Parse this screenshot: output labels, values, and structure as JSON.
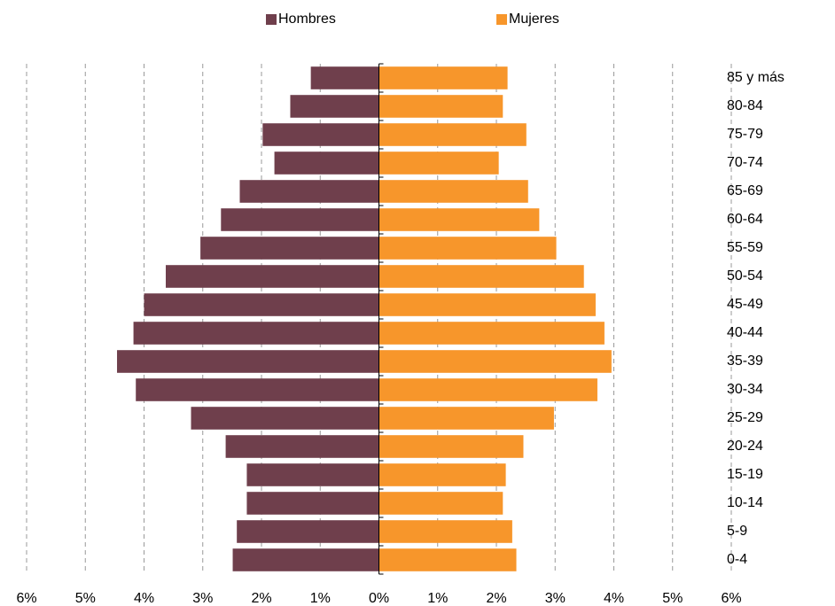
{
  "chart_data": {
    "type": "pyramid",
    "categories": [
      "0-4",
      "5-9",
      "10-14",
      "15-19",
      "20-24",
      "25-29",
      "30-34",
      "35-39",
      "40-44",
      "45-49",
      "50-54",
      "55-59",
      "60-64",
      "65-69",
      "70-74",
      "75-79",
      "80-84",
      "85 y más"
    ],
    "series": [
      {
        "name": "Hombres",
        "color": "#6f3f4c",
        "values": [
          -2.49,
          -2.42,
          -2.25,
          -2.25,
          -2.61,
          -3.2,
          -4.14,
          -4.46,
          -4.18,
          -4.0,
          -3.63,
          -3.04,
          -2.69,
          -2.37,
          -1.78,
          -1.98,
          -1.51,
          -1.16
        ]
      },
      {
        "name": "Mujeres",
        "color": "#f7962b",
        "values": [
          2.34,
          2.27,
          2.11,
          2.16,
          2.46,
          2.98,
          3.72,
          3.96,
          3.84,
          3.69,
          3.49,
          3.02,
          2.73,
          2.54,
          2.04,
          2.51,
          2.11,
          2.19
        ]
      }
    ],
    "xlim": [
      -6,
      6
    ],
    "xticks": [
      {
        "value": -6,
        "label": "6%"
      },
      {
        "value": -5,
        "label": "5%"
      },
      {
        "value": -4,
        "label": "4%"
      },
      {
        "value": -3,
        "label": "3%"
      },
      {
        "value": -2,
        "label": "2%"
      },
      {
        "value": -1,
        "label": "1%"
      },
      {
        "value": 0,
        "label": "0%"
      },
      {
        "value": 1,
        "label": "1%"
      },
      {
        "value": 2,
        "label": "2%"
      },
      {
        "value": 3,
        "label": "3%"
      },
      {
        "value": 4,
        "label": "4%"
      },
      {
        "value": 5,
        "label": "5%"
      },
      {
        "value": 6,
        "label": "6%"
      }
    ],
    "grid": true,
    "legend": "top"
  }
}
